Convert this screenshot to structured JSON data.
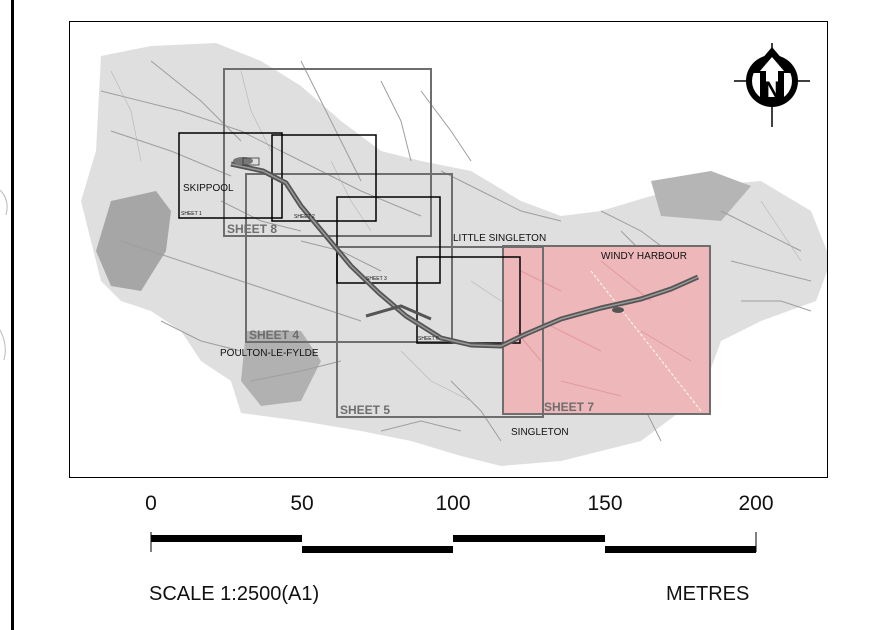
{
  "map": {
    "places": {
      "skippool": "SKIPPOOL",
      "little_singleton": "LITTLE SINGLETON",
      "windy_harbour": "WINDY HARBOUR",
      "poulton": "POULTON-LE-FYLDE",
      "singleton": "SINGLETON"
    },
    "sheets": {
      "sheet_1": "SHEET 1",
      "sheet_2": "SHEET 2",
      "sheet_3": "SHEET 3",
      "sheet_4": "SHEET 4",
      "sheet_5": "SHEET 5",
      "sheet_6": "SHEET 6",
      "sheet_7": "SHEET 7",
      "sheet_8": "SHEET 8"
    },
    "north_letter": "N",
    "colors": {
      "highlight_fill": "#eeb7b9",
      "road_gray": "#a8a8a8",
      "sheet_border_gray": "#6e6e6e",
      "sheet_border_black": "#000000"
    }
  },
  "scale": {
    "ticks": [
      "0",
      "50",
      "100",
      "150",
      "200"
    ],
    "scale_label": "SCALE 1:2500(A1)",
    "units_label": "METRES"
  }
}
